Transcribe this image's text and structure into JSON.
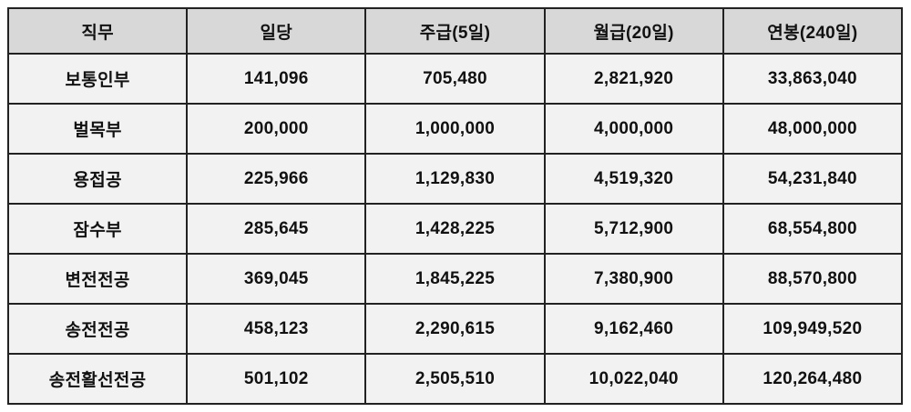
{
  "chart_data": {
    "type": "table",
    "title": "",
    "columns": [
      "직무",
      "일당",
      "주급(5일)",
      "월급(20일)",
      "연봉(240일)"
    ],
    "rows": [
      [
        "보통인부",
        "141,096",
        "705,480",
        "2,821,920",
        "33,863,040"
      ],
      [
        "벌목부",
        "200,000",
        "1,000,000",
        "4,000,000",
        "48,000,000"
      ],
      [
        "용접공",
        "225,966",
        "1,129,830",
        "4,519,320",
        "54,231,840"
      ],
      [
        "잠수부",
        "285,645",
        "1,428,225",
        "5,712,900",
        "68,554,800"
      ],
      [
        "변전전공",
        "369,045",
        "1,845,225",
        "7,380,900",
        "88,570,800"
      ],
      [
        "송전전공",
        "458,123",
        "2,290,615",
        "9,162,460",
        "109,949,520"
      ],
      [
        "송전활선전공",
        "501,102",
        "2,505,510",
        "10,022,040",
        "120,264,480"
      ]
    ]
  },
  "colors": {
    "header_bg": "#d8d8d8",
    "row_bg": "#f2f2f2",
    "border": "#222222",
    "text": "#111111",
    "page_bg": "#ffffff"
  }
}
